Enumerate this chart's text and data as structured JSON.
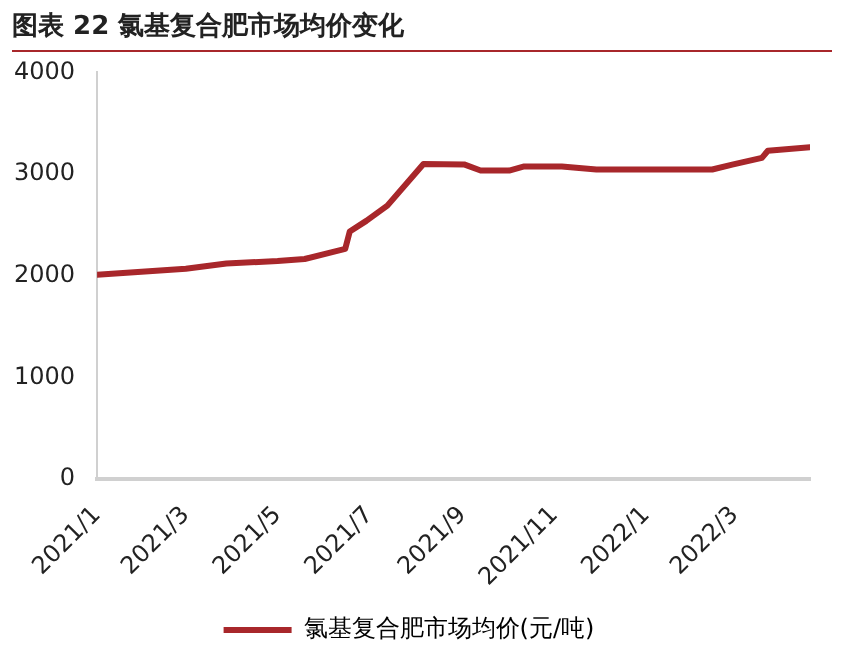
{
  "chart_data": {
    "type": "line",
    "title": "图表 22 氯基复合肥市场均价变化",
    "x": [
      "2021-01-01",
      "2021-03-01",
      "2021-03-28",
      "2021-05-01",
      "2021-05-19",
      "2021-06-15",
      "2021-06-18",
      "2021-06-29",
      "2021-07-13",
      "2021-08-06",
      "2021-09-02",
      "2021-09-13",
      "2021-10-02",
      "2021-10-12",
      "2021-11-06",
      "2021-11-29",
      "2022-02-14",
      "2022-02-28",
      "2022-03-19",
      "2022-03-23",
      "2022-04-20"
    ],
    "series": [
      {
        "name": "氯基复合肥市场均价(元/吨)",
        "color": "#a8272b",
        "values": [
          2010,
          2070,
          2120,
          2145,
          2165,
          2265,
          2435,
          2540,
          2690,
          3100,
          3095,
          3035,
          3035,
          3075,
          3075,
          3045,
          3045,
          3095,
          3160,
          3230,
          3265
        ]
      }
    ],
    "xlim": [
      "2021-01-01",
      "2022-04-20"
    ],
    "xticks": [
      {
        "value": "2021-01-01",
        "label": "2021/1"
      },
      {
        "value": "2021-03-01",
        "label": "2021/3"
      },
      {
        "value": "2021-05-01",
        "label": "2021/5"
      },
      {
        "value": "2021-07-01",
        "label": "2021/7"
      },
      {
        "value": "2021-09-01",
        "label": "2021/9"
      },
      {
        "value": "2021-11-01",
        "label": "2021/11"
      },
      {
        "value": "2022-01-01",
        "label": "2022/1"
      },
      {
        "value": "2022-03-01",
        "label": "2022/3"
      }
    ],
    "ylim": [
      0,
      4000
    ],
    "yticks": [
      0,
      1000,
      2000,
      3000,
      4000
    ],
    "grid": false,
    "legend": "bottom",
    "marker": "none",
    "line_style": "solid"
  }
}
